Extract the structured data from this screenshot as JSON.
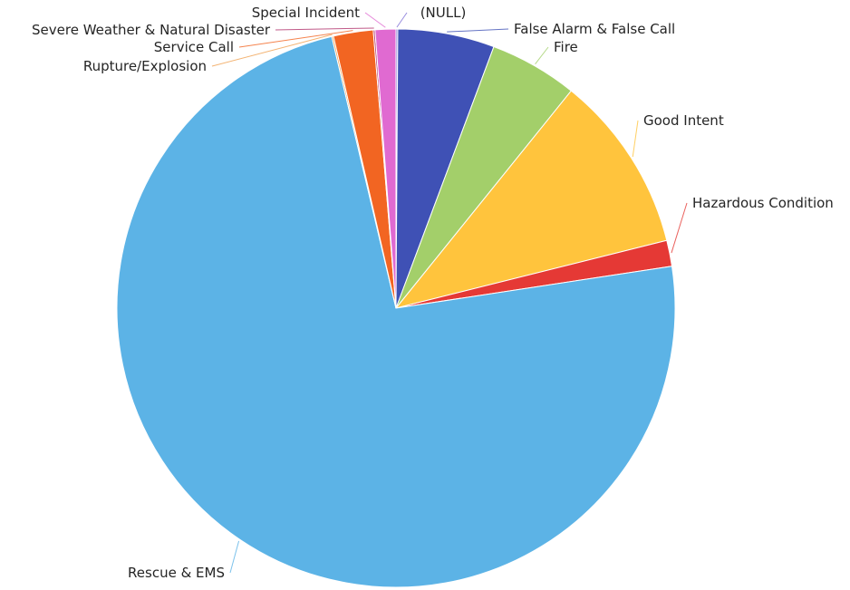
{
  "chart_data": {
    "type": "pie",
    "title": "",
    "start_angle_deg": -90,
    "direction": "clockwise",
    "legend": "none",
    "slices": [
      {
        "label": "(NULL)",
        "value": 0.1,
        "color": "#7e6fd6"
      },
      {
        "label": "False Alarm & False Call",
        "value": 5.6,
        "color": "#3f51b5"
      },
      {
        "label": "Fire",
        "value": 5.1,
        "color": "#a3cf6a"
      },
      {
        "label": "Good Intent",
        "value": 10.3,
        "color": "#ffc43d"
      },
      {
        "label": "Hazardous Condition",
        "value": 1.5,
        "color": "#e53935"
      },
      {
        "label": "Rescue & EMS",
        "value": 73.7,
        "color": "#5cb3e6"
      },
      {
        "label": "Rupture/Explosion",
        "value": 0.1,
        "color": "#f0a050"
      },
      {
        "label": "Service Call",
        "value": 2.3,
        "color": "#f26522"
      },
      {
        "label": "Severe Weather & Natural Disaster",
        "value": 0.1,
        "color": "#b0306a"
      },
      {
        "label": "Special Incident",
        "value": 1.2,
        "color": "#e06ad1"
      }
    ]
  }
}
